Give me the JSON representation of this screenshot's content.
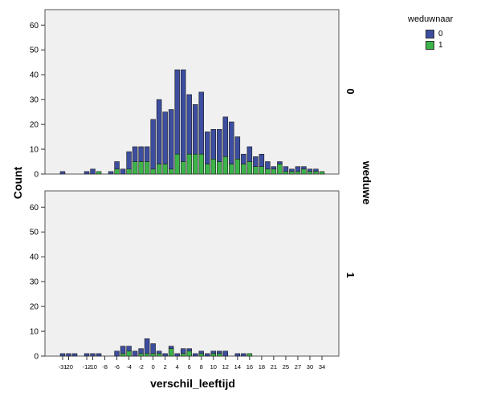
{
  "chart_data": {
    "type": "bar",
    "stacked": true,
    "facet_by": "weduwe",
    "xlabel": "verschil_leeftijd",
    "ylabel": "Count",
    "ylim": [
      0,
      63
    ],
    "yticks": [
      0,
      10,
      20,
      30,
      40,
      50,
      60
    ],
    "x_tick_labels": [
      "-31",
      "-20",
      "-12",
      "-10",
      "-8",
      "-6",
      "-4",
      "-2",
      "0",
      "2",
      "4",
      "6",
      "8",
      "10",
      "12",
      "14",
      "16",
      "18",
      "21",
      "25",
      "27",
      "30",
      "34"
    ],
    "grid": false,
    "legend": {
      "title": "weduwnaar",
      "position": "top-right",
      "items": [
        {
          "label": "0",
          "color": "#3d4ea0"
        },
        {
          "label": "1",
          "color": "#3cb44a"
        }
      ]
    },
    "series": [
      {
        "name": "0",
        "color": "#3d4ea0"
      },
      {
        "name": "1",
        "color": "#3cb44a"
      }
    ],
    "panels": [
      {
        "facet_label": "0",
        "x": [
          -31,
          -20,
          -16,
          -12,
          -10,
          -9,
          -8,
          -7,
          -6,
          -5,
          -4,
          -3,
          -2,
          -1,
          0,
          1,
          2,
          3,
          4,
          5,
          6,
          7,
          8,
          9,
          10,
          11,
          12,
          13,
          14,
          15,
          16,
          17,
          18,
          19,
          21,
          22,
          25,
          26,
          27,
          28,
          30,
          32,
          34
        ],
        "values_0": [
          1,
          0,
          0,
          1,
          2,
          0,
          0,
          1,
          3,
          2,
          7,
          6,
          6,
          6,
          20,
          26,
          21,
          24,
          34,
          37,
          24,
          20,
          25,
          13,
          12,
          13,
          16,
          17,
          9,
          4,
          6,
          4,
          5,
          3,
          1,
          1,
          2,
          1,
          2,
          1,
          1,
          1,
          0
        ],
        "values_1": [
          0,
          0,
          0,
          0,
          0,
          1,
          0,
          0,
          2,
          0,
          2,
          5,
          5,
          5,
          2,
          4,
          4,
          2,
          8,
          5,
          8,
          8,
          8,
          4,
          6,
          5,
          7,
          4,
          6,
          4,
          5,
          3,
          3,
          2,
          2,
          4,
          1,
          1,
          1,
          2,
          1,
          1,
          1
        ]
      },
      {
        "facet_label": "1",
        "x": [
          -31,
          -20,
          -18,
          -12,
          -10,
          -9,
          -6,
          -5,
          -4,
          -3,
          -2,
          -1,
          0,
          1,
          2,
          3,
          4,
          5,
          6,
          7,
          8,
          9,
          10,
          11,
          12,
          14,
          15,
          16,
          17
        ],
        "values_0": [
          1,
          1,
          1,
          1,
          1,
          1,
          2,
          3,
          2,
          2,
          2,
          6,
          4,
          1,
          1,
          1,
          1,
          2,
          1,
          1,
          1,
          1,
          1,
          1,
          2,
          1,
          1,
          0,
          0
        ],
        "values_1": [
          0,
          0,
          0,
          0,
          0,
          0,
          0,
          1,
          2,
          0,
          1,
          1,
          1,
          1,
          0,
          3,
          0,
          1,
          2,
          0,
          1,
          0,
          1,
          1,
          0,
          0,
          0,
          1,
          0
        ]
      }
    ]
  },
  "facet_title": "weduwe"
}
